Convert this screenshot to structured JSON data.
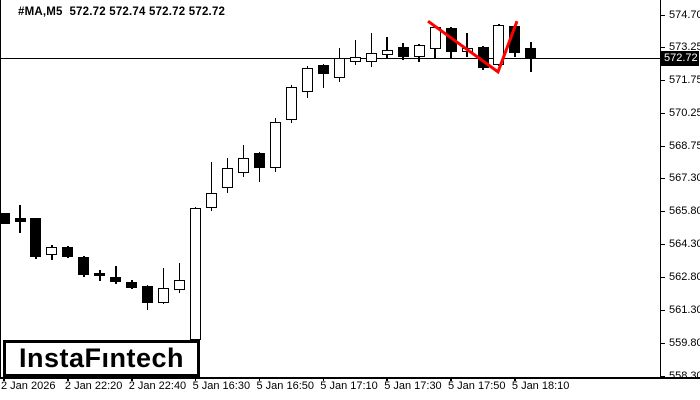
{
  "window": {
    "logo_text": "InstaFıntech"
  },
  "header": {
    "symbol_period": "#MA,M5",
    "ohlc_line": "572.72 572.74 572.72 572.72"
  },
  "colors": {
    "background": "#ffffff",
    "foreground": "#000000",
    "bull_fill": "#ffffff",
    "bear_fill": "#000000",
    "trendline": "#ff0000",
    "price_label_bg": "#000000",
    "price_label_text": "#ffffff"
  },
  "chart_data": {
    "type": "candlestick",
    "symbol": "#MA",
    "timeframe": "M5",
    "quote": {
      "open": "572.72",
      "high": "572.74",
      "low": "572.72",
      "close": "572.72"
    },
    "current_price": 572.72,
    "price_label": "572.72",
    "ylabel": "",
    "xlabel": "",
    "y_ticks": [
      574.7,
      573.25,
      571.75,
      570.25,
      568.75,
      567.3,
      565.8,
      564.3,
      562.8,
      561.3,
      559.8,
      558.3
    ],
    "y_range_visible": [
      558.3,
      575.35
    ],
    "x_ticks": [
      "2 Jan 2026",
      "2 Jan 22:20",
      "2 Jan 22:40",
      "5 Jan 16:30",
      "5 Jan 16:50",
      "5 Jan 17:10",
      "5 Jan 17:30",
      "5 Jan 17:50",
      "5 Jan 18:10"
    ],
    "grid": false,
    "candles": [
      {
        "o": 565.75,
        "h": 565.75,
        "l": 565.25,
        "c": 565.25
      },
      {
        "o": 565.5,
        "h": 566.1,
        "l": 564.8,
        "c": 565.3
      },
      {
        "o": 565.5,
        "h": 565.5,
        "l": 563.65,
        "c": 563.75
      },
      {
        "o": 563.8,
        "h": 564.3,
        "l": 563.6,
        "c": 564.2
      },
      {
        "o": 564.2,
        "h": 564.25,
        "l": 563.7,
        "c": 563.75
      },
      {
        "o": 563.75,
        "h": 563.8,
        "l": 562.85,
        "c": 562.9
      },
      {
        "o": 563.0,
        "h": 563.15,
        "l": 562.65,
        "c": 562.85
      },
      {
        "o": 562.85,
        "h": 563.35,
        "l": 562.5,
        "c": 562.6
      },
      {
        "o": 562.6,
        "h": 562.7,
        "l": 562.3,
        "c": 562.35
      },
      {
        "o": 562.4,
        "h": 562.45,
        "l": 561.35,
        "c": 561.65
      },
      {
        "o": 561.65,
        "h": 563.25,
        "l": 561.6,
        "c": 562.35
      },
      {
        "o": 562.25,
        "h": 563.45,
        "l": 562.1,
        "c": 562.7
      },
      {
        "o": 559.95,
        "h": 566.0,
        "l": 559.9,
        "c": 565.95
      },
      {
        "o": 565.95,
        "h": 568.05,
        "l": 565.8,
        "c": 566.65
      },
      {
        "o": 566.85,
        "h": 568.2,
        "l": 566.65,
        "c": 567.75
      },
      {
        "o": 567.55,
        "h": 568.8,
        "l": 567.35,
        "c": 568.2
      },
      {
        "o": 568.45,
        "h": 568.5,
        "l": 567.15,
        "c": 567.75
      },
      {
        "o": 567.75,
        "h": 570.05,
        "l": 567.6,
        "c": 569.85
      },
      {
        "o": 569.95,
        "h": 571.55,
        "l": 569.8,
        "c": 571.45
      },
      {
        "o": 571.2,
        "h": 572.4,
        "l": 570.95,
        "c": 572.3
      },
      {
        "o": 572.45,
        "h": 572.5,
        "l": 571.4,
        "c": 572.0
      },
      {
        "o": 571.85,
        "h": 573.2,
        "l": 571.65,
        "c": 572.75
      },
      {
        "o": 572.55,
        "h": 573.55,
        "l": 572.45,
        "c": 572.8
      },
      {
        "o": 572.55,
        "h": 573.9,
        "l": 572.35,
        "c": 573.0
      },
      {
        "o": 572.9,
        "h": 573.7,
        "l": 572.75,
        "c": 573.1
      },
      {
        "o": 573.25,
        "h": 573.45,
        "l": 572.65,
        "c": 572.8
      },
      {
        "o": 572.8,
        "h": 573.4,
        "l": 572.55,
        "c": 573.35
      },
      {
        "o": 573.15,
        "h": 574.2,
        "l": 572.75,
        "c": 574.15
      },
      {
        "o": 574.1,
        "h": 574.15,
        "l": 572.75,
        "c": 573.0
      },
      {
        "o": 573.0,
        "h": 573.9,
        "l": 572.8,
        "c": 573.2
      },
      {
        "o": 573.25,
        "h": 573.3,
        "l": 572.2,
        "c": 572.3
      },
      {
        "o": 572.45,
        "h": 574.3,
        "l": 572.4,
        "c": 574.25
      },
      {
        "o": 574.2,
        "h": 574.25,
        "l": 572.8,
        "c": 573.0
      },
      {
        "o": 573.2,
        "h": 573.5,
        "l": 572.1,
        "c": 572.72
      }
    ],
    "trendline": {
      "color": "#ff0000",
      "points": [
        {
          "x": 428,
          "price": 574.42
        },
        {
          "x": 498,
          "price": 572.12
        },
        {
          "x": 517,
          "price": 574.42
        }
      ]
    }
  }
}
